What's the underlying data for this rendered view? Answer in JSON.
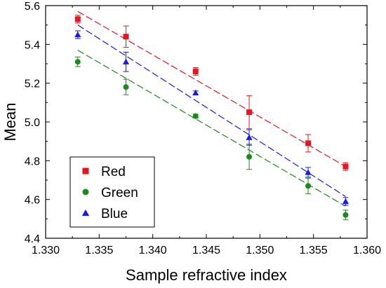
{
  "chart_data": {
    "type": "scatter",
    "xlabel": "Sample refractive index",
    "ylabel": "Mean",
    "xlim": [
      1.33,
      1.36
    ],
    "ylim": [
      4.4,
      5.6
    ],
    "xticks": [
      "1.330",
      "1.335",
      "1.340",
      "1.345",
      "1.350",
      "1.355",
      "1.360"
    ],
    "yticks": [
      "4.4",
      "4.6",
      "4.8",
      "5.0",
      "5.2",
      "5.4",
      "5.6"
    ],
    "legend_position": "bottom-left",
    "grid": false,
    "x": [
      1.333,
      1.3375,
      1.344,
      1.349,
      1.3545,
      1.358
    ],
    "series": [
      {
        "name": "Red",
        "color": "#e8141e",
        "marker": "square",
        "values": [
          5.53,
          5.44,
          5.26,
          5.05,
          4.89,
          4.77
        ],
        "errors": [
          0.02,
          0.055,
          0.02,
          0.085,
          0.045,
          0.02
        ],
        "fit": [
          5.57,
          4.77
        ]
      },
      {
        "name": "Green",
        "color": "#1a8a1a",
        "marker": "circle",
        "values": [
          5.31,
          5.18,
          5.03,
          4.82,
          4.67,
          4.52
        ],
        "errors": [
          0.025,
          0.04,
          0.01,
          0.065,
          0.04,
          0.025
        ],
        "fit": [
          5.37,
          4.565
        ]
      },
      {
        "name": "Blue",
        "color": "#1a1ae6",
        "marker": "triangle",
        "values": [
          5.45,
          5.31,
          5.15,
          4.92,
          4.74,
          4.59
        ],
        "errors": [
          0.02,
          0.05,
          0.01,
          0.04,
          0.025,
          0.02
        ],
        "fit": [
          5.5,
          4.615
        ]
      }
    ]
  }
}
